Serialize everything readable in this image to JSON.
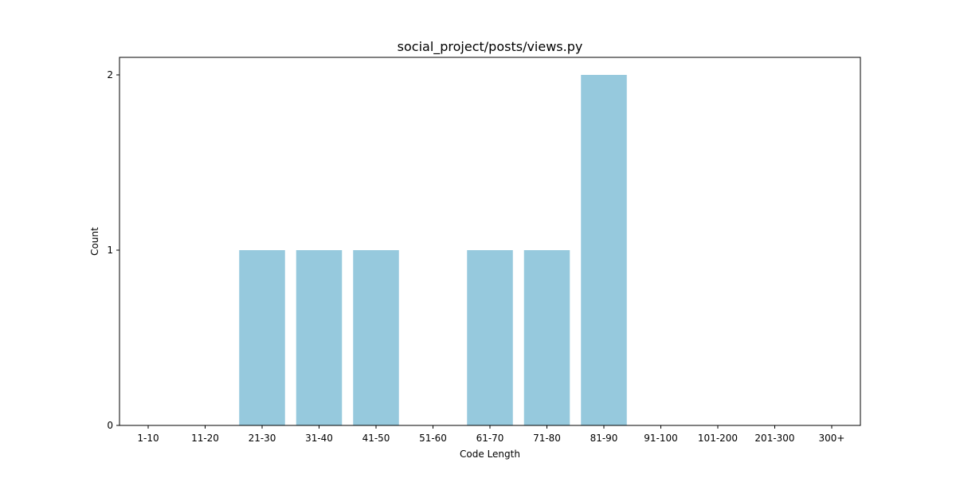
{
  "chart_data": {
    "type": "bar",
    "title": "social_project/posts/views.py",
    "xlabel": "Code Length",
    "ylabel": "Count",
    "categories": [
      "1-10",
      "11-20",
      "21-30",
      "31-40",
      "41-50",
      "51-60",
      "61-70",
      "71-80",
      "81-90",
      "91-100",
      "101-200",
      "201-300",
      "300+"
    ],
    "values": [
      0,
      0,
      1,
      1,
      1,
      0,
      1,
      1,
      2,
      0,
      0,
      0,
      0
    ],
    "ylim": [
      0,
      2.1
    ],
    "yticks": [
      "0",
      "1",
      "2"
    ],
    "bar_color": "#96c9dd",
    "grid": false,
    "legend": "none"
  }
}
